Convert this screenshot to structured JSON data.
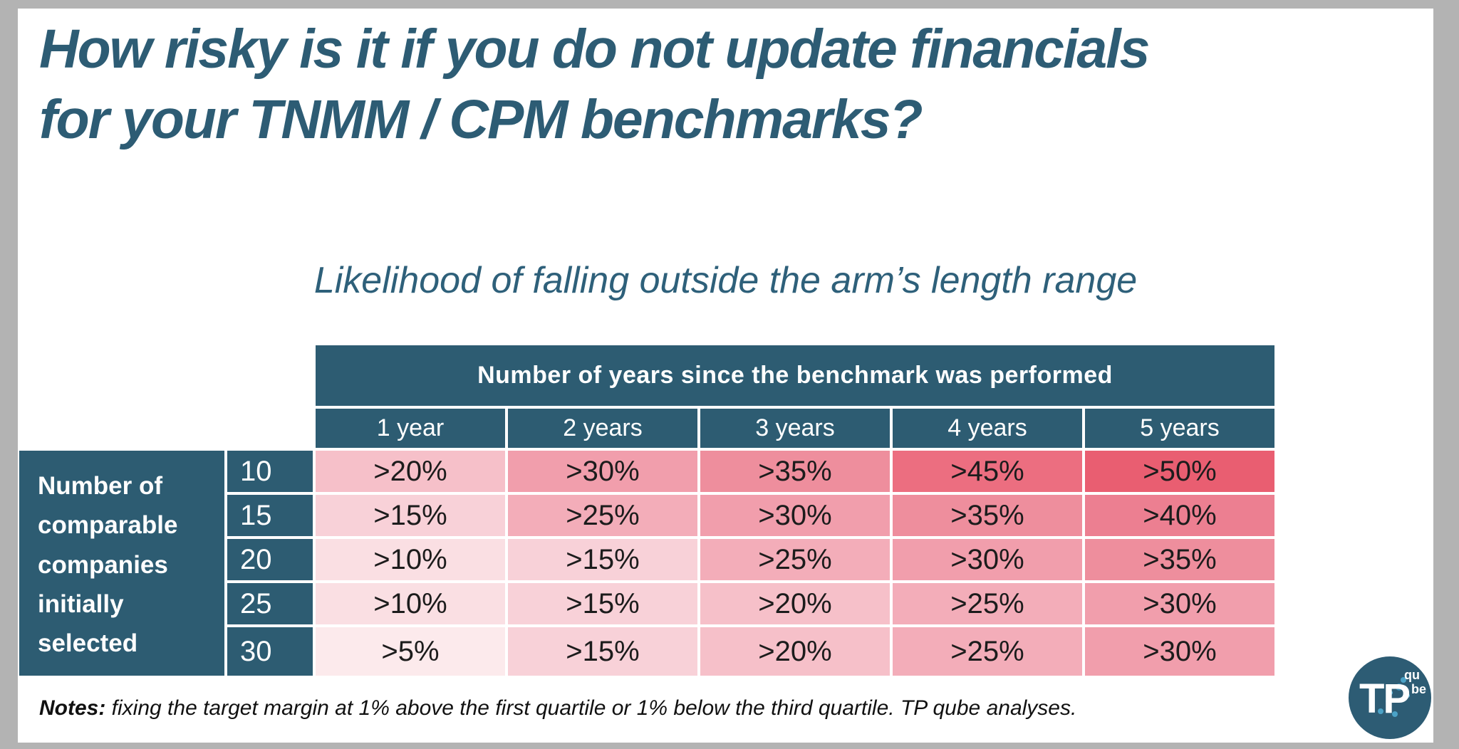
{
  "title": {
    "line1": "How risky is it if you do not update financials",
    "line2": "for your TNMM / CPM benchmarks?"
  },
  "subtitle": "Likelihood of falling outside the arm’s length range",
  "table": {
    "column_group_header": "Number of years since the benchmark was performed",
    "row_group_header": "Number of comparable companies initially selected",
    "columns": [
      "1 year",
      "2 years",
      "3 years",
      "4 years",
      "5 years"
    ],
    "rows": [
      {
        "label": "10",
        "values": [
          ">20%",
          ">30%",
          ">35%",
          ">45%",
          ">50%"
        ],
        "heat": [
          20,
          30,
          35,
          45,
          50
        ]
      },
      {
        "label": "15",
        "values": [
          ">15%",
          ">25%",
          ">30%",
          ">35%",
          ">40%"
        ],
        "heat": [
          15,
          25,
          30,
          35,
          40
        ]
      },
      {
        "label": "20",
        "values": [
          ">10%",
          ">15%",
          ">25%",
          ">30%",
          ">35%"
        ],
        "heat": [
          10,
          15,
          25,
          30,
          35
        ]
      },
      {
        "label": "25",
        "values": [
          ">10%",
          ">15%",
          ">20%",
          ">25%",
          ">30%"
        ],
        "heat": [
          10,
          15,
          20,
          25,
          30
        ]
      },
      {
        "label": "30",
        "values": [
          ">5%",
          ">15%",
          ">20%",
          ">25%",
          ">30%"
        ],
        "heat": [
          5,
          15,
          20,
          25,
          30
        ]
      }
    ]
  },
  "notes": {
    "label": "Notes:",
    "text": " fixing the target margin at 1% above the first quartile or 1% below the third quartile. TP qube analyses."
  },
  "logo": {
    "main": "TP",
    "small_top": "qu",
    "small_bottom": "be"
  },
  "colors": {
    "frame_gray": "#b3b3b3",
    "slide_bg": "#ffffff",
    "teal": "#2d5c72",
    "title_teal": "#2d5c74",
    "cell_text": "#1c1c1c",
    "heat": {
      "5": "#fceaec",
      "10": "#fadfe3",
      "15": "#f8d1d8",
      "20": "#f6c0c9",
      "25": "#f3adb9",
      "30": "#f19eac",
      "35": "#ee8e9d",
      "40": "#ec7f91",
      "45": "#ec6e80",
      "50": "#e95e71"
    }
  },
  "chart_data": {
    "type": "heatmap",
    "title": "Likelihood of falling outside the arm’s length range",
    "x_axis_label": "Number of years since the benchmark was performed",
    "x_labels": [
      "1 year",
      "2 years",
      "3 years",
      "4 years",
      "5 years"
    ],
    "y_axis_label": "Number of comparable companies initially selected",
    "y_labels": [
      "10",
      "15",
      "20",
      "25",
      "30"
    ],
    "cell_text": [
      [
        ">20%",
        ">30%",
        ">35%",
        ">45%",
        ">50%"
      ],
      [
        ">15%",
        ">25%",
        ">30%",
        ">35%",
        ">40%"
      ],
      [
        ">10%",
        ">15%",
        ">25%",
        ">30%",
        ">35%"
      ],
      [
        ">10%",
        ">15%",
        ">20%",
        ">25%",
        ">30%"
      ],
      [
        ">5%",
        ">15%",
        ">20%",
        ">25%",
        ">30%"
      ]
    ],
    "values_pct_lower_bound": [
      [
        20,
        30,
        35,
        45,
        50
      ],
      [
        15,
        25,
        30,
        35,
        40
      ],
      [
        10,
        15,
        25,
        30,
        35
      ],
      [
        10,
        15,
        20,
        25,
        30
      ],
      [
        5,
        15,
        20,
        25,
        30
      ]
    ],
    "legend_position": "none",
    "notes": "Notes: fixing the target margin at 1% above the first quartile or 1% below the third quartile. TP qube analyses."
  }
}
